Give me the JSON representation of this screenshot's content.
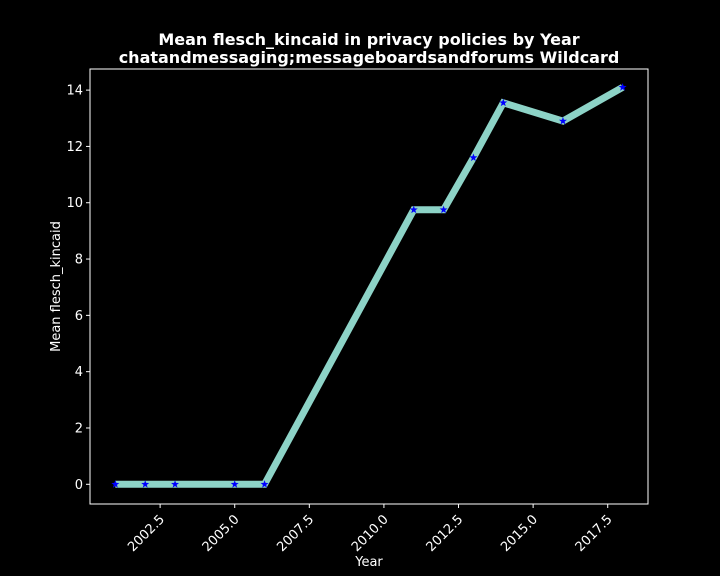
{
  "chart_data": {
    "type": "line",
    "title": "Mean flesch_kincaid in privacy policies by Year",
    "subtitle": "chatandmessaging;messageboardsandforums Wildcard",
    "xlabel": "Year",
    "ylabel": "Mean flesch_kincaid",
    "xlim": [
      2000.15,
      2018.85
    ],
    "ylim": [
      -0.7,
      14.75
    ],
    "xticks": [
      2002.5,
      2005.0,
      2007.5,
      2010.0,
      2012.5,
      2015.0,
      2017.5
    ],
    "xtick_labels": [
      "2002.5",
      "2005.0",
      "2007.5",
      "2010.0",
      "2012.5",
      "2015.0",
      "2017.5"
    ],
    "yticks": [
      0,
      2,
      4,
      6,
      8,
      10,
      12,
      14
    ],
    "ytick_labels": [
      "0",
      "2",
      "4",
      "6",
      "8",
      "10",
      "12",
      "14"
    ],
    "grid": false,
    "legend": "none",
    "colors": {
      "background": "#000000",
      "line": "#8dd3c7",
      "marker": "#0000ff",
      "text": "#ffffff",
      "axes": "#ffffff"
    },
    "marker": "star",
    "series": [
      {
        "x": [
          2001,
          2002,
          2003,
          2005,
          2006,
          2011,
          2012,
          2013,
          2014,
          2016,
          2018
        ],
        "values": [
          0,
          0,
          0,
          0,
          0,
          9.75,
          9.75,
          11.6,
          13.55,
          12.9,
          14.1
        ]
      }
    ]
  }
}
